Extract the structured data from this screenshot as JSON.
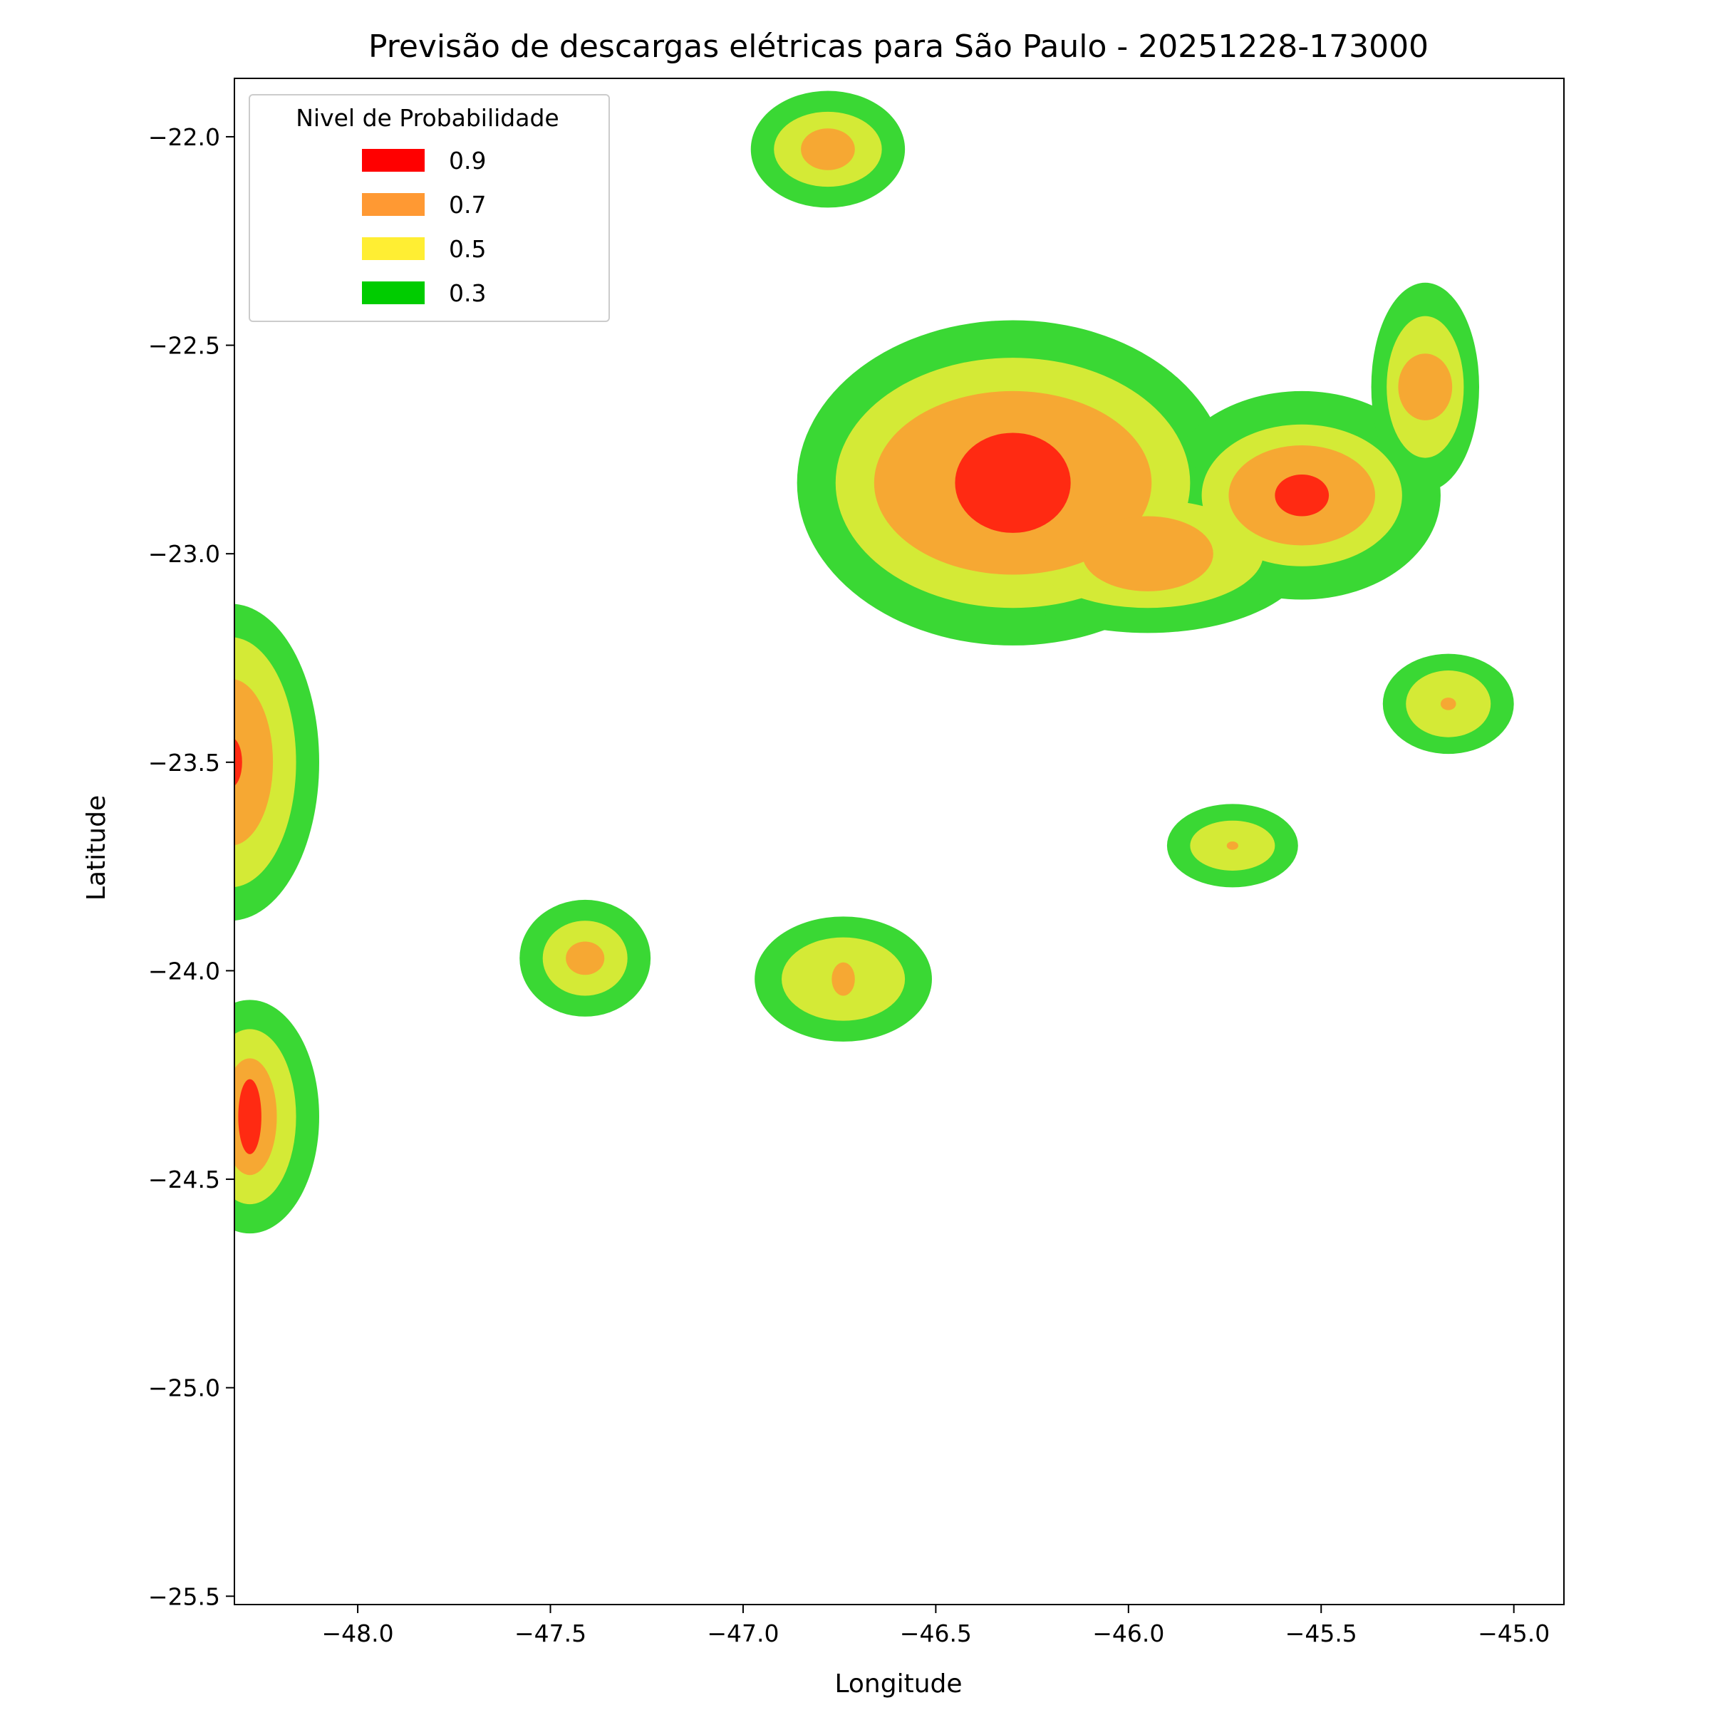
{
  "chart_data": {
    "type": "contourf",
    "title": "Previsão de descargas elétricas para São Paulo - 20251228-173000",
    "xlabel": "Longitude",
    "ylabel": "Latitude",
    "xlim": [
      -48.32,
      -44.87
    ],
    "ylim": [
      -25.52,
      -21.86
    ],
    "xticks": [
      -48.0,
      -47.5,
      -47.0,
      -46.5,
      -46.0,
      -45.5,
      -45.0
    ],
    "xtick_labels": [
      "−48.0",
      "−47.5",
      "−47.0",
      "−46.5",
      "−46.0",
      "−45.5",
      "−45.0"
    ],
    "yticks": [
      -22.0,
      -22.5,
      -23.0,
      -23.5,
      -24.0,
      -24.5,
      -25.0,
      -25.5
    ],
    "ytick_labels": [
      "−22.0",
      "−22.5",
      "−23.0",
      "−23.5",
      "−24.0",
      "−24.5",
      "−25.0",
      "−25.5"
    ],
    "grid": false,
    "legend": {
      "title": "Nivel de Probabilidade",
      "placement": "top-left",
      "entries": [
        {
          "label": "0.9",
          "color": "#ff0000"
        },
        {
          "label": "0.7",
          "color": "#ff9933"
        },
        {
          "label": "0.5",
          "color": "#ffee33"
        },
        {
          "label": "0.3",
          "color": "#00cc00"
        }
      ]
    },
    "fill_colors": {
      "0.3": "#3ad834",
      "0.5": "#d4ea36",
      "0.7": "#f6a833",
      "0.9": "#ff2a12"
    },
    "cells": [
      {
        "cx": -46.3,
        "cy": -22.83,
        "levels": [
          {
            "level": "0.3",
            "rx": 0.56,
            "ry": 0.39
          },
          {
            "level": "0.5",
            "rx": 0.46,
            "ry": 0.3
          },
          {
            "level": "0.7",
            "rx": 0.36,
            "ry": 0.22
          },
          {
            "level": "0.9",
            "rx": 0.15,
            "ry": 0.12
          }
        ]
      },
      {
        "cx": -45.95,
        "cy": -23.0,
        "levels": [
          {
            "level": "0.3",
            "rx": 0.42,
            "ry": 0.19
          },
          {
            "level": "0.5",
            "rx": 0.3,
            "ry": 0.13
          },
          {
            "level": "0.7",
            "rx": 0.17,
            "ry": 0.09
          }
        ]
      },
      {
        "cx": -45.55,
        "cy": -22.86,
        "levels": [
          {
            "level": "0.3",
            "rx": 0.36,
            "ry": 0.25
          },
          {
            "level": "0.5",
            "rx": 0.26,
            "ry": 0.17
          },
          {
            "level": "0.7",
            "rx": 0.19,
            "ry": 0.12
          },
          {
            "level": "0.9",
            "rx": 0.07,
            "ry": 0.05
          }
        ]
      },
      {
        "cx": -46.05,
        "cy": -22.87,
        "levels": [
          {
            "level": "0.3",
            "rx": 0.25,
            "ry": 0.17
          },
          {
            "level": "0.5",
            "rx": 0.18,
            "ry": 0.12
          }
        ]
      },
      {
        "cx": -45.23,
        "cy": -22.6,
        "levels": [
          {
            "level": "0.3",
            "rx": 0.14,
            "ry": 0.25
          },
          {
            "level": "0.5",
            "rx": 0.1,
            "ry": 0.17
          },
          {
            "level": "0.7",
            "rx": 0.07,
            "ry": 0.08
          }
        ]
      },
      {
        "cx": -46.78,
        "cy": -22.03,
        "levels": [
          {
            "level": "0.3",
            "rx": 0.2,
            "ry": 0.14
          },
          {
            "level": "0.5",
            "rx": 0.14,
            "ry": 0.09
          },
          {
            "level": "0.7",
            "rx": 0.07,
            "ry": 0.05
          }
        ]
      },
      {
        "cx": -45.17,
        "cy": -23.36,
        "levels": [
          {
            "level": "0.3",
            "rx": 0.17,
            "ry": 0.12
          },
          {
            "level": "0.5",
            "rx": 0.11,
            "ry": 0.08
          },
          {
            "level": "0.7",
            "rx": 0.02,
            "ry": 0.015
          }
        ]
      },
      {
        "cx": -45.73,
        "cy": -23.7,
        "levels": [
          {
            "level": "0.3",
            "rx": 0.17,
            "ry": 0.1
          },
          {
            "level": "0.5",
            "rx": 0.11,
            "ry": 0.06
          },
          {
            "level": "0.7",
            "rx": 0.015,
            "ry": 0.01
          }
        ]
      },
      {
        "cx": -47.41,
        "cy": -23.97,
        "levels": [
          {
            "level": "0.3",
            "rx": 0.17,
            "ry": 0.14
          },
          {
            "level": "0.5",
            "rx": 0.11,
            "ry": 0.09
          },
          {
            "level": "0.7",
            "rx": 0.05,
            "ry": 0.04
          }
        ]
      },
      {
        "cx": -46.74,
        "cy": -24.02,
        "levels": [
          {
            "level": "0.3",
            "rx": 0.23,
            "ry": 0.15
          },
          {
            "level": "0.5",
            "rx": 0.16,
            "ry": 0.1
          },
          {
            "level": "0.7",
            "rx": 0.03,
            "ry": 0.04
          }
        ]
      },
      {
        "cx": -48.33,
        "cy": -23.5,
        "levels": [
          {
            "level": "0.3",
            "rx": 0.23,
            "ry": 0.38
          },
          {
            "level": "0.5",
            "rx": 0.17,
            "ry": 0.3
          },
          {
            "level": "0.7",
            "rx": 0.11,
            "ry": 0.2
          },
          {
            "level": "0.9",
            "rx": 0.03,
            "ry": 0.06
          }
        ]
      },
      {
        "cx": -48.28,
        "cy": -24.35,
        "levels": [
          {
            "level": "0.3",
            "rx": 0.18,
            "ry": 0.28
          },
          {
            "level": "0.5",
            "rx": 0.12,
            "ry": 0.21
          },
          {
            "level": "0.7",
            "rx": 0.07,
            "ry": 0.14
          },
          {
            "level": "0.9",
            "rx": 0.03,
            "ry": 0.09
          }
        ]
      }
    ]
  }
}
